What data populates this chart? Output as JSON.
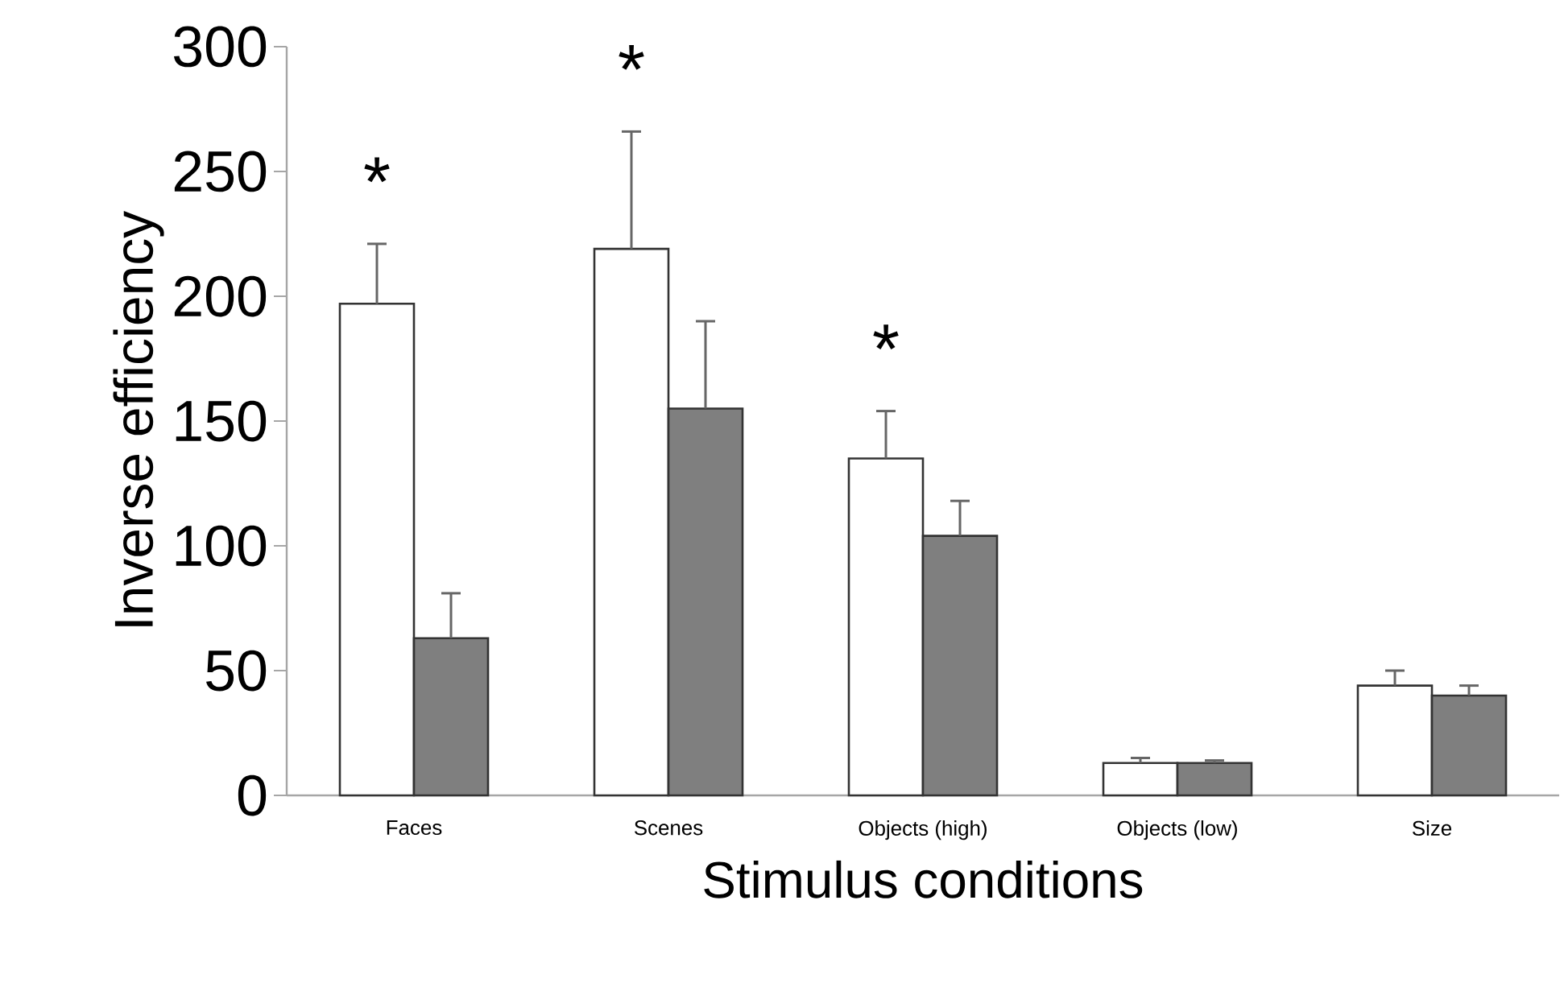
{
  "chart_data": {
    "type": "bar",
    "xlabel": "Stimulus conditions",
    "ylabel": "Inverse efficiency",
    "categories": [
      "Faces",
      "Scenes",
      "Objects (high)",
      "Objects (low)",
      "Size"
    ],
    "series": [
      {
        "color": "#ffffff",
        "values": [
          197,
          219,
          135,
          13,
          44
        ],
        "errors": [
          24,
          47,
          19,
          2,
          6
        ]
      },
      {
        "color": "#7f7f7f",
        "values": [
          63,
          155,
          104,
          13,
          40
        ],
        "errors": [
          18,
          35,
          14,
          1,
          4
        ]
      }
    ],
    "ylim": [
      0,
      300
    ],
    "yticks": [
      0,
      50,
      100,
      150,
      200,
      250,
      300
    ],
    "annotations": [
      "*",
      "*",
      "*"
    ]
  }
}
